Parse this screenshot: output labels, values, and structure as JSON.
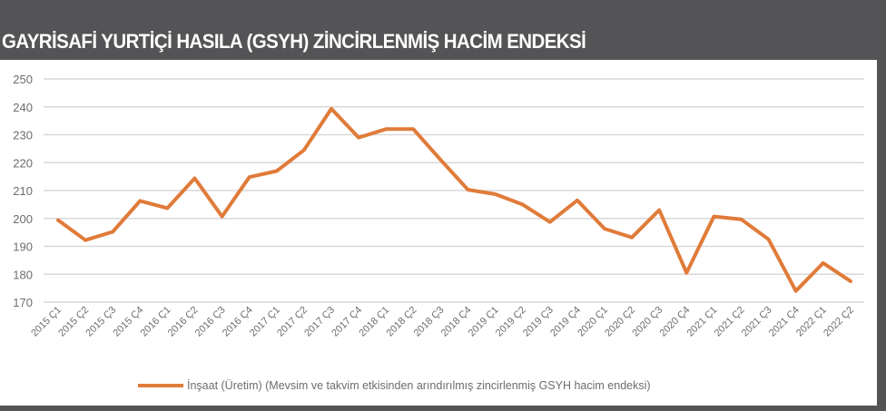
{
  "title": "GAYRİSAFİ YURTİÇİ HASILA (GSYH) ZİNCİRLENMİŞ HACİM ENDEKSİ",
  "colors": {
    "background": "#545456",
    "panel": "#ffffff",
    "series": "#E07B39",
    "grid": "#d9d9d9",
    "text": "#6d6d6d"
  },
  "chart_data": {
    "type": "line",
    "title": "GAYRİSAFİ YURTİÇİ HASILA (GSYH) ZİNCİRLENMİŞ HACİM ENDEKSİ",
    "xlabel": "",
    "ylabel": "",
    "ylim": [
      170,
      250
    ],
    "yticks": [
      170,
      180,
      190,
      200,
      210,
      220,
      230,
      240,
      250
    ],
    "grid": true,
    "legend_position": "bottom",
    "categories": [
      "2015 Ç1",
      "2015 Ç2",
      "2015 Ç3",
      "2015 Ç4",
      "2016 Ç1",
      "2016 Ç2",
      "2016 Ç3",
      "2016 Ç4",
      "2017 Ç1",
      "2017 Ç2",
      "2017 Ç3",
      "2017 Ç4",
      "2018 Ç1",
      "2018 Ç2",
      "2018 Ç3",
      "2018 Ç4",
      "2019 Ç1",
      "2019 Ç2",
      "2019 Ç3",
      "2019 Ç4",
      "2020 Ç1",
      "2020 Ç2",
      "2020 Ç3",
      "2020 Ç4",
      "2021 Ç1",
      "2021 Ç2",
      "2021 Ç3",
      "2021 Ç4",
      "2022 Ç1",
      "2022 Ç2"
    ],
    "series": [
      {
        "name": "İnşaat (Üretim) (Mevsim ve takvim etkisinden arındırılmış zincirlenmiş GSYH hacim endeksi)",
        "color": "#E07B39",
        "values": [
          199.4,
          192.2,
          195.2,
          206.3,
          203.7,
          214.4,
          200.7,
          214.8,
          217.0,
          224.5,
          239.3,
          229.0,
          232.0,
          232.0,
          221.0,
          210.3,
          208.7,
          205.0,
          198.7,
          206.5,
          196.3,
          193.2,
          203.0,
          180.5,
          200.7,
          199.7,
          192.5,
          174.0,
          184.0,
          177.5
        ]
      }
    ]
  }
}
